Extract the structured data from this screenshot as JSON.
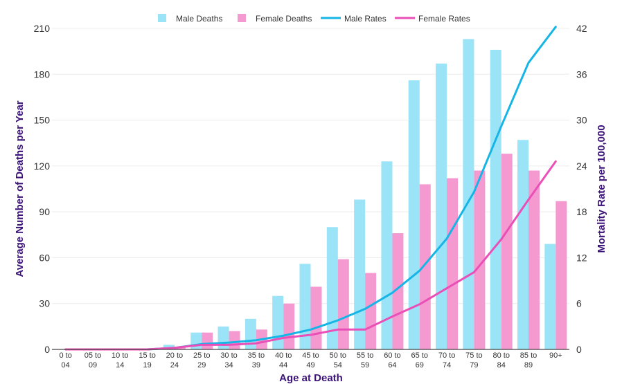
{
  "chart_data": {
    "type": "bar",
    "xlabel": "Age at Death",
    "ylabel": "Average Number of Deaths per Year",
    "y2label": "Mortality Rate per 100,000",
    "ylim": [
      0,
      210
    ],
    "y2lim": [
      0,
      42
    ],
    "yticks": [
      0,
      30,
      60,
      90,
      120,
      150,
      180,
      210
    ],
    "y2ticks": [
      0,
      6,
      12,
      18,
      24,
      30,
      36,
      42
    ],
    "legend_position": "top-center",
    "grid": true,
    "categories": [
      [
        "0 to",
        "04"
      ],
      [
        "05 to",
        "09"
      ],
      [
        "10 to",
        "14"
      ],
      [
        "15 to",
        "19"
      ],
      [
        "20 to",
        "24"
      ],
      [
        "25 to",
        "29"
      ],
      [
        "30 to",
        "34"
      ],
      [
        "35 to",
        "39"
      ],
      [
        "40 to",
        "44"
      ],
      [
        "45 to",
        "49"
      ],
      [
        "50 to",
        "54"
      ],
      [
        "55 to",
        "59"
      ],
      [
        "60 to",
        "64"
      ],
      [
        "65 to",
        "69"
      ],
      [
        "70 to",
        "74"
      ],
      [
        "75 to",
        "79"
      ],
      [
        "80 to",
        "84"
      ],
      [
        "85 to",
        "89"
      ],
      [
        "90+",
        ""
      ]
    ],
    "series": [
      {
        "name": "Male Deaths",
        "kind": "bar",
        "axis": "left",
        "color": "#9be3f7",
        "values": [
          0,
          0,
          0,
          0,
          3,
          11,
          15,
          20,
          35,
          56,
          80,
          98,
          123,
          176,
          187,
          203,
          196,
          137,
          69
        ]
      },
      {
        "name": "Female Deaths",
        "kind": "bar",
        "axis": "left",
        "color": "#f49ad1",
        "values": [
          0,
          0,
          0,
          0,
          1,
          11,
          12,
          13,
          30,
          41,
          59,
          50,
          76,
          108,
          112,
          117,
          128,
          117,
          97
        ]
      },
      {
        "name": "Male Rates",
        "kind": "line",
        "axis": "right",
        "color": "#16b5e6",
        "values": [
          0,
          0,
          0,
          0,
          0.2,
          0.7,
          0.9,
          1.2,
          1.8,
          2.6,
          3.8,
          5.3,
          7.4,
          10.3,
          14.5,
          20.6,
          29.2,
          37.5,
          42.2
        ]
      },
      {
        "name": "Female Rates",
        "kind": "line",
        "axis": "right",
        "color": "#e94fb7",
        "values": [
          0,
          0,
          0,
          0,
          0.2,
          0.6,
          0.6,
          0.8,
          1.5,
          1.9,
          2.6,
          2.6,
          4.3,
          5.9,
          8.0,
          10.1,
          14.4,
          19.6,
          24.6
        ]
      }
    ]
  }
}
